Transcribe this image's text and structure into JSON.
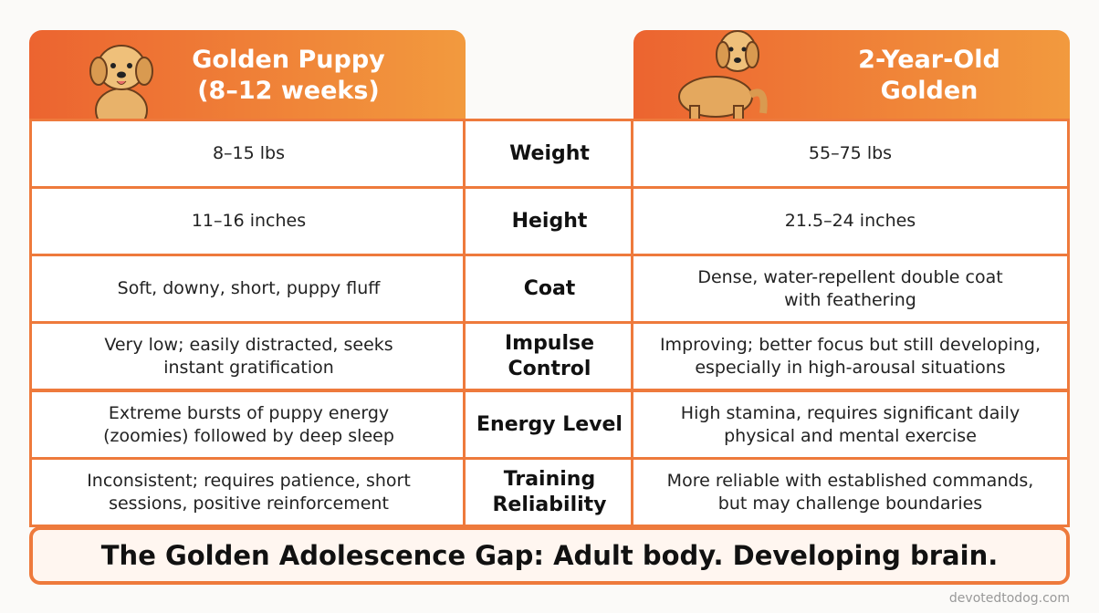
{
  "header": {
    "left_title": [
      "Golden Puppy",
      "(8–12 weeks)"
    ],
    "right_title": [
      "2-Year-Old",
      "Golden"
    ]
  },
  "table": {
    "rows": [
      {
        "label": [
          "Weight"
        ],
        "puppy": [
          "8–15 lbs"
        ],
        "adult": [
          "55–75 lbs"
        ]
      },
      {
        "label": [
          "Height"
        ],
        "puppy": [
          "11–16 inches"
        ],
        "adult": [
          "21.5–24 inches"
        ]
      },
      {
        "label": [
          "Coat"
        ],
        "puppy": [
          "Soft, downy, short, puppy fluff"
        ],
        "adult": [
          "Dense, water-repellent double coat",
          "with feathering"
        ]
      },
      {
        "label": [
          "Impulse",
          "Control"
        ],
        "puppy": [
          "Very low; easily distracted, seeks",
          "instant gratification"
        ],
        "adult": [
          "Improving; better focus but still developing,",
          "especially in high-arousal situations"
        ]
      },
      {
        "label": [
          "Energy Level"
        ],
        "puppy": [
          "Extreme bursts of puppy energy",
          "(zoomies) followed by deep sleep"
        ],
        "adult": [
          "High stamina, requires significant daily",
          "physical and mental exercise"
        ]
      },
      {
        "label": [
          "Training",
          "Reliability"
        ],
        "puppy": [
          "Inconsistent; requires patience, short",
          "sessions, positive reinforcement"
        ],
        "adult": [
          "More reliable with established commands,",
          "but may challenge boundaries"
        ]
      }
    ]
  },
  "footer": {
    "banner": "The Golden Adolescence Gap: Adult body. Developing brain.",
    "watermark": "devotedtodog.com"
  }
}
